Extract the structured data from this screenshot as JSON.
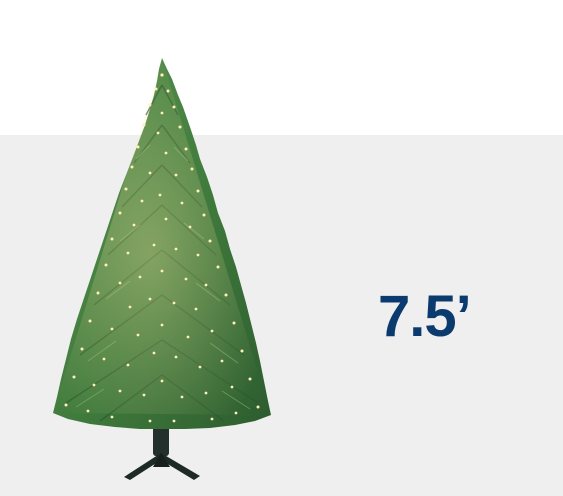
{
  "product": {
    "height_label": "7.5’",
    "image_icon": "christmas-tree-icon"
  },
  "colors": {
    "label_text": "#0b3a6e",
    "backdrop": "#efefef",
    "page_background": "#ffffff",
    "tree_green": "#3f7a3c",
    "light_glow": "#ffe9a6",
    "stand": "#1e2a26"
  }
}
